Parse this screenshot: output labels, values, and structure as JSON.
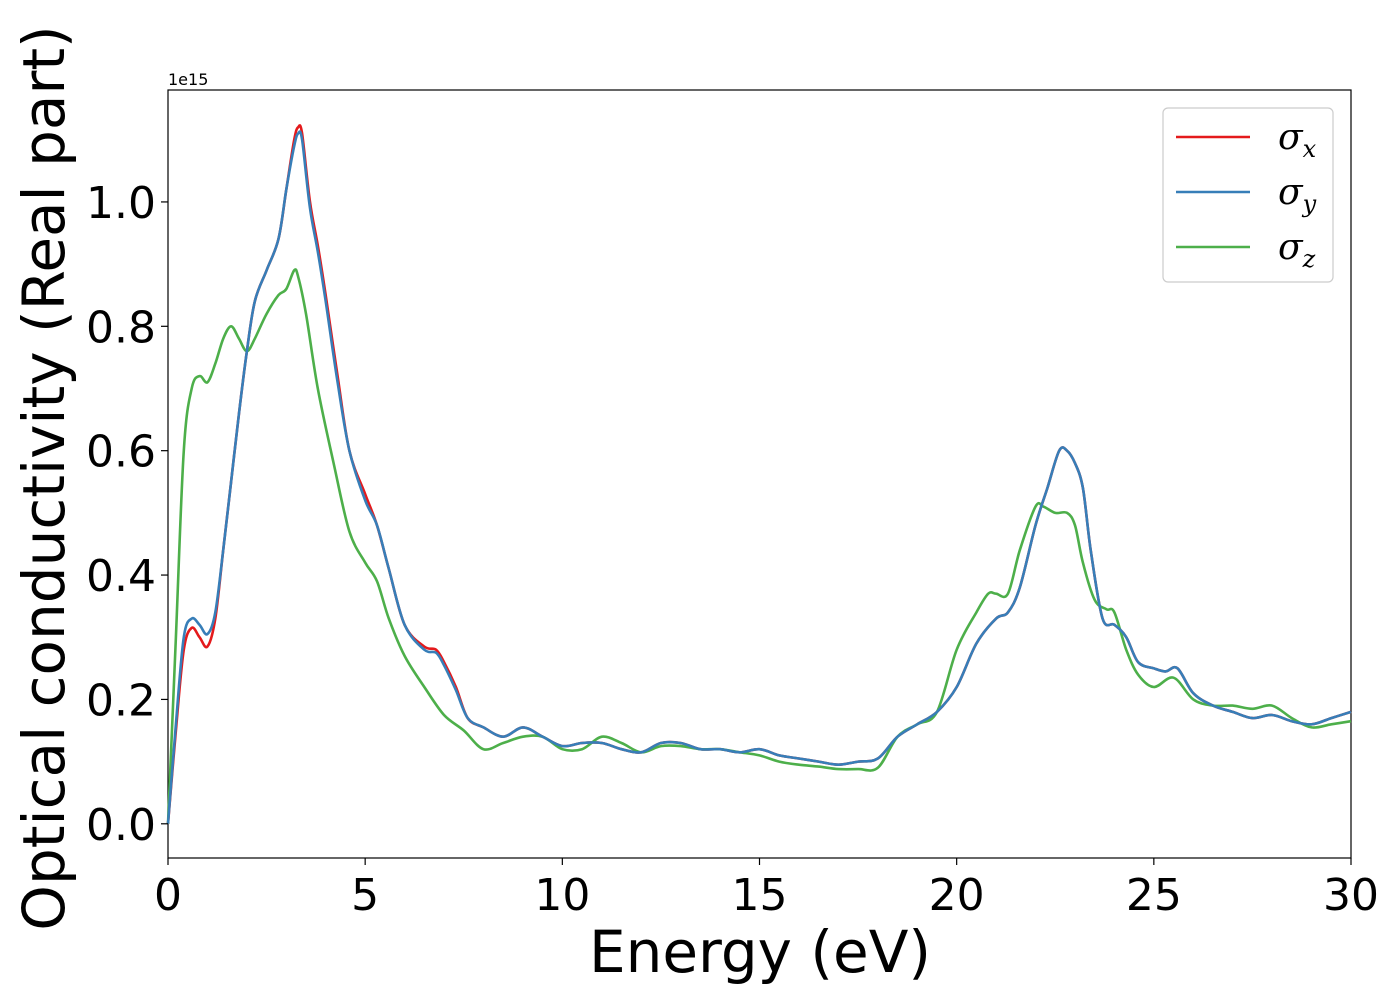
{
  "chart_data": {
    "type": "line",
    "xlabel": "Energy (eV)",
    "ylabel": "Optical conductivity (Real part)",
    "y_offset_text": "1e15",
    "xlim": [
      0,
      30
    ],
    "ylim": [
      -0.055,
      1.18
    ],
    "y_scale_factor": 1000000000000000.0,
    "x_ticks": [
      0,
      5,
      10,
      15,
      20,
      25,
      30
    ],
    "x_tick_labels": [
      "0",
      "5",
      "10",
      "15",
      "20",
      "25",
      "30"
    ],
    "y_ticks": [
      0.0,
      0.2,
      0.4,
      0.6,
      0.8,
      1.0
    ],
    "y_tick_labels": [
      "0.0",
      "0.2",
      "0.4",
      "0.6",
      "0.8",
      "1.0"
    ],
    "grid": false,
    "legend_position": "top-right",
    "series": [
      {
        "name": "σx",
        "symbol": "σ",
        "subscript": "x",
        "color": "#e41a1c",
        "x": [
          0,
          0.2,
          0.4,
          0.6,
          0.8,
          1.0,
          1.2,
          1.4,
          1.6,
          1.8,
          2.0,
          2.2,
          2.5,
          2.8,
          3.0,
          3.2,
          3.3,
          3.4,
          3.6,
          3.8,
          4.0,
          4.3,
          4.6,
          5.0,
          5.3,
          5.6,
          6.0,
          6.5,
          6.8,
          7.0,
          7.3,
          7.6,
          8.0,
          8.5,
          9.0,
          9.5,
          10.0,
          10.5,
          11.0,
          11.5,
          12.0,
          12.5,
          13.0,
          13.5,
          14.0,
          14.5,
          15.0,
          15.5,
          16.0,
          16.5,
          17.0,
          17.5,
          18.0,
          18.5,
          19.0,
          19.5,
          20.0,
          20.5,
          21.0,
          21.3,
          21.6,
          22.0,
          22.3,
          22.6,
          22.8,
          23.0,
          23.2,
          23.4,
          23.7,
          24.0,
          24.3,
          24.6,
          25.0,
          25.3,
          25.6,
          26.0,
          26.5,
          27.0,
          27.5,
          28.0,
          28.5,
          29.0,
          29.5,
          30.0
        ],
        "y": [
          0.0,
          0.15,
          0.28,
          0.315,
          0.3,
          0.285,
          0.33,
          0.44,
          0.55,
          0.66,
          0.76,
          0.84,
          0.89,
          0.94,
          1.02,
          1.1,
          1.12,
          1.11,
          1.0,
          0.93,
          0.85,
          0.72,
          0.6,
          0.53,
          0.48,
          0.41,
          0.32,
          0.285,
          0.28,
          0.26,
          0.22,
          0.17,
          0.155,
          0.14,
          0.155,
          0.14,
          0.125,
          0.13,
          0.13,
          0.12,
          0.115,
          0.13,
          0.13,
          0.12,
          0.12,
          0.115,
          0.12,
          0.11,
          0.105,
          0.1,
          0.095,
          0.1,
          0.105,
          0.14,
          0.16,
          0.18,
          0.22,
          0.29,
          0.33,
          0.34,
          0.38,
          0.48,
          0.54,
          0.6,
          0.6,
          0.58,
          0.54,
          0.44,
          0.33,
          0.32,
          0.3,
          0.26,
          0.25,
          0.245,
          0.25,
          0.21,
          0.19,
          0.18,
          0.17,
          0.175,
          0.165,
          0.16,
          0.17,
          0.18
        ]
      },
      {
        "name": "σy",
        "symbol": "σ",
        "subscript": "y",
        "color": "#377eb8",
        "x": [
          0,
          0.2,
          0.4,
          0.6,
          0.8,
          1.0,
          1.2,
          1.4,
          1.6,
          1.8,
          2.0,
          2.2,
          2.5,
          2.8,
          3.0,
          3.2,
          3.3,
          3.4,
          3.6,
          3.8,
          4.0,
          4.3,
          4.6,
          5.0,
          5.3,
          5.6,
          6.0,
          6.5,
          6.8,
          7.0,
          7.3,
          7.6,
          8.0,
          8.5,
          9.0,
          9.5,
          10.0,
          10.5,
          11.0,
          11.5,
          12.0,
          12.5,
          13.0,
          13.5,
          14.0,
          14.5,
          15.0,
          15.5,
          16.0,
          16.5,
          17.0,
          17.5,
          18.0,
          18.5,
          19.0,
          19.5,
          20.0,
          20.5,
          21.0,
          21.3,
          21.6,
          22.0,
          22.3,
          22.6,
          22.8,
          23.0,
          23.2,
          23.4,
          23.7,
          24.0,
          24.3,
          24.6,
          25.0,
          25.3,
          25.6,
          26.0,
          26.5,
          27.0,
          27.5,
          28.0,
          28.5,
          29.0,
          29.5,
          30.0
        ],
        "y": [
          0.0,
          0.16,
          0.3,
          0.33,
          0.32,
          0.305,
          0.34,
          0.44,
          0.55,
          0.66,
          0.76,
          0.84,
          0.89,
          0.94,
          1.02,
          1.09,
          1.11,
          1.1,
          0.99,
          0.92,
          0.84,
          0.71,
          0.6,
          0.52,
          0.48,
          0.41,
          0.32,
          0.28,
          0.275,
          0.255,
          0.215,
          0.17,
          0.155,
          0.14,
          0.155,
          0.14,
          0.125,
          0.13,
          0.13,
          0.12,
          0.115,
          0.13,
          0.13,
          0.12,
          0.12,
          0.115,
          0.12,
          0.11,
          0.105,
          0.1,
          0.095,
          0.1,
          0.105,
          0.14,
          0.16,
          0.18,
          0.22,
          0.29,
          0.33,
          0.34,
          0.38,
          0.48,
          0.54,
          0.6,
          0.6,
          0.58,
          0.54,
          0.44,
          0.33,
          0.32,
          0.3,
          0.26,
          0.25,
          0.245,
          0.25,
          0.21,
          0.19,
          0.18,
          0.17,
          0.175,
          0.165,
          0.16,
          0.17,
          0.18
        ]
      },
      {
        "name": "σz",
        "symbol": "σ",
        "subscript": "z",
        "color": "#4daf4a",
        "x": [
          0,
          0.2,
          0.4,
          0.6,
          0.8,
          1.0,
          1.2,
          1.4,
          1.6,
          1.8,
          2.0,
          2.2,
          2.5,
          2.8,
          3.0,
          3.2,
          3.3,
          3.5,
          3.8,
          4.2,
          4.6,
          5.0,
          5.3,
          5.6,
          6.0,
          6.5,
          7.0,
          7.5,
          8.0,
          8.5,
          9.0,
          9.5,
          10.0,
          10.5,
          11.0,
          11.5,
          12.0,
          12.5,
          13.0,
          13.5,
          14.0,
          14.5,
          15.0,
          15.5,
          16.0,
          16.5,
          17.0,
          17.5,
          18.0,
          18.5,
          19.0,
          19.5,
          20.0,
          20.5,
          20.8,
          21.0,
          21.3,
          21.6,
          22.0,
          22.2,
          22.5,
          22.8,
          23.0,
          23.2,
          23.5,
          23.8,
          24.0,
          24.3,
          24.6,
          25.0,
          25.5,
          26.0,
          26.5,
          27.0,
          27.5,
          28.0,
          28.5,
          29.0,
          29.5,
          30.0
        ],
        "y": [
          0.0,
          0.3,
          0.6,
          0.7,
          0.72,
          0.71,
          0.74,
          0.78,
          0.8,
          0.78,
          0.76,
          0.78,
          0.82,
          0.85,
          0.86,
          0.89,
          0.88,
          0.82,
          0.7,
          0.58,
          0.47,
          0.42,
          0.39,
          0.33,
          0.27,
          0.22,
          0.175,
          0.15,
          0.12,
          0.13,
          0.14,
          0.14,
          0.12,
          0.12,
          0.14,
          0.13,
          0.115,
          0.125,
          0.125,
          0.12,
          0.12,
          0.115,
          0.11,
          0.1,
          0.095,
          0.092,
          0.088,
          0.088,
          0.09,
          0.14,
          0.16,
          0.18,
          0.28,
          0.34,
          0.37,
          0.37,
          0.37,
          0.44,
          0.51,
          0.51,
          0.5,
          0.5,
          0.48,
          0.42,
          0.36,
          0.345,
          0.34,
          0.28,
          0.24,
          0.22,
          0.235,
          0.2,
          0.19,
          0.19,
          0.185,
          0.19,
          0.17,
          0.155,
          0.16,
          0.165
        ]
      }
    ]
  }
}
